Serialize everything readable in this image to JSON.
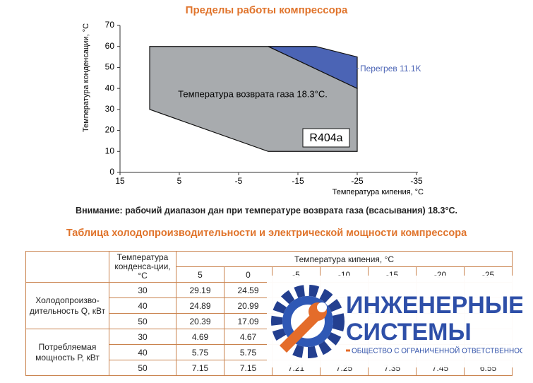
{
  "chart_data": {
    "type": "polygon",
    "title": "Пределы работы компрессора",
    "x_label": "Температура кипения, °C",
    "y_label": "Температура конденсации, °C",
    "xlim": [
      15,
      -35
    ],
    "ylim": [
      0,
      70
    ],
    "xticks": [
      15,
      5,
      -5,
      -15,
      -25,
      -35
    ],
    "yticks": [
      0,
      10,
      20,
      30,
      40,
      50,
      60,
      70
    ],
    "grid": false,
    "regions": [
      {
        "color": "#a8abae",
        "x": [
          10,
          -10,
          -25,
          -25,
          -10,
          10
        ],
        "y": [
          60,
          60,
          40,
          10,
          10,
          30
        ]
      },
      {
        "color": "#4b64b5",
        "x": [
          -10,
          -18,
          -25,
          -25
        ],
        "y": [
          60,
          60,
          55,
          40
        ]
      }
    ],
    "annotations": [
      "Температура возврата газа 18.3°C.",
      "R404a",
      "Перегрев 11.1K"
    ]
  },
  "note": "Внимание: рабочий диапазон дан при температуре возврата газа (всасывания) 18.3°C.",
  "table": {
    "title": "Таблица холодопроизводительности и электрической мощности компрессора",
    "condensing": "Температура конденса-ции, °C",
    "evaporating": "Температура кипения, °C",
    "columns": [
      5,
      0,
      -5,
      -10,
      -15,
      -20,
      -25
    ],
    "groups": [
      {
        "label": "Холодопроизво-дительность Q, кВт",
        "rows": [
          [
            30,
            29.19,
            24.59
          ],
          [
            40,
            24.89,
            20.99
          ],
          [
            50,
            20.39,
            17.09
          ]
        ]
      },
      {
        "label": "Потребляемая мощность P, кВт",
        "rows": [
          [
            30,
            4.69,
            4.67
          ],
          [
            40,
            5.75,
            5.75
          ],
          [
            50,
            7.15,
            7.15,
            7.21,
            7.25,
            7.35,
            7.45,
            6.55
          ]
        ]
      }
    ]
  },
  "logo": {
    "line1": "ИНЖЕНЕРНЫЕ",
    "line2": "СИСТЕМЫ",
    "tagline": "ОБЩЕСТВО С ОГРАНИЧЕННОЙ ОТВЕТСТВЕННОСТЬЮ"
  }
}
